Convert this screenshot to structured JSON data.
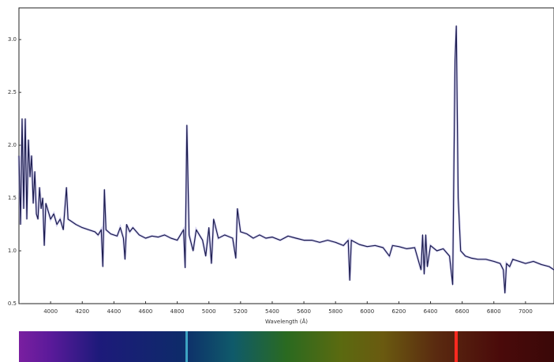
{
  "chart_data": {
    "type": "line",
    "x_label": "Wavelength (Å)",
    "x": [
      3800,
      3810,
      3820,
      3830,
      3840,
      3850,
      3860,
      3870,
      3880,
      3890,
      3900,
      3910,
      3920,
      3930,
      3940,
      3950,
      3960,
      3970,
      3980,
      4000,
      4020,
      4040,
      4060,
      4080,
      4100,
      4110,
      4130,
      4160,
      4200,
      4240,
      4280,
      4300,
      4320,
      4330,
      4340,
      4350,
      4380,
      4420,
      4440,
      4460,
      4470,
      4480,
      4500,
      4520,
      4560,
      4600,
      4640,
      4680,
      4720,
      4760,
      4800,
      4840,
      4850,
      4861,
      4875,
      4900,
      4920,
      4960,
      4980,
      5000,
      5016,
      5030,
      5060,
      5100,
      5150,
      5170,
      5180,
      5200,
      5240,
      5280,
      5320,
      5360,
      5400,
      5450,
      5500,
      5550,
      5600,
      5650,
      5700,
      5750,
      5800,
      5850,
      5880,
      5890,
      5900,
      5950,
      6000,
      6050,
      6100,
      6140,
      6160,
      6200,
      6250,
      6300,
      6340,
      6350,
      6360,
      6370,
      6380,
      6400,
      6440,
      6480,
      6520,
      6540,
      6555,
      6563,
      6575,
      6590,
      6620,
      6660,
      6700,
      6750,
      6800,
      6840,
      6860,
      6870,
      6880,
      6900,
      6920,
      6960,
      7000,
      7050,
      7100,
      7150,
      7180
    ],
    "values": [
      1.9,
      1.25,
      2.25,
      1.4,
      2.25,
      1.3,
      2.05,
      1.7,
      1.9,
      1.45,
      1.75,
      1.35,
      1.3,
      1.6,
      1.4,
      1.5,
      1.05,
      1.45,
      1.4,
      1.3,
      1.35,
      1.25,
      1.3,
      1.2,
      1.6,
      1.3,
      1.28,
      1.25,
      1.22,
      1.2,
      1.18,
      1.15,
      1.2,
      0.85,
      1.58,
      1.2,
      1.16,
      1.14,
      1.22,
      1.12,
      0.92,
      1.25,
      1.18,
      1.22,
      1.15,
      1.12,
      1.14,
      1.13,
      1.15,
      1.12,
      1.1,
      1.2,
      0.84,
      2.19,
      1.15,
      1.0,
      1.2,
      1.1,
      0.95,
      1.22,
      0.88,
      1.3,
      1.12,
      1.15,
      1.12,
      0.93,
      1.4,
      1.18,
      1.16,
      1.12,
      1.15,
      1.12,
      1.13,
      1.1,
      1.14,
      1.12,
      1.1,
      1.1,
      1.08,
      1.1,
      1.08,
      1.05,
      1.1,
      0.72,
      1.1,
      1.06,
      1.04,
      1.05,
      1.03,
      0.95,
      1.05,
      1.04,
      1.02,
      1.03,
      0.82,
      1.15,
      0.78,
      1.15,
      0.85,
      1.05,
      1.0,
      1.02,
      0.95,
      0.68,
      2.8,
      3.13,
      1.5,
      1.0,
      0.95,
      0.93,
      0.92,
      0.92,
      0.9,
      0.88,
      0.82,
      0.6,
      0.88,
      0.85,
      0.92,
      0.9,
      0.88,
      0.9,
      0.87,
      0.85,
      0.82
    ],
    "color": "#1c1c4e",
    "xlim": [
      3800,
      7180
    ],
    "ylim": [
      0.5,
      3.3
    ],
    "xticks": [
      4000,
      4200,
      4400,
      4600,
      4800,
      5000,
      5200,
      5400,
      5600,
      5800,
      6000,
      6200,
      6400,
      6600,
      6800,
      7000
    ],
    "yticks": [
      {
        "value": 0.5,
        "label": "0.5"
      },
      {
        "value": 1,
        "label": "1.0"
      },
      1.5,
      {
        "value": 2,
        "label": "2.0"
      },
      2.5,
      {
        "value": 3,
        "label": "3.0"
      }
    ]
  }
}
